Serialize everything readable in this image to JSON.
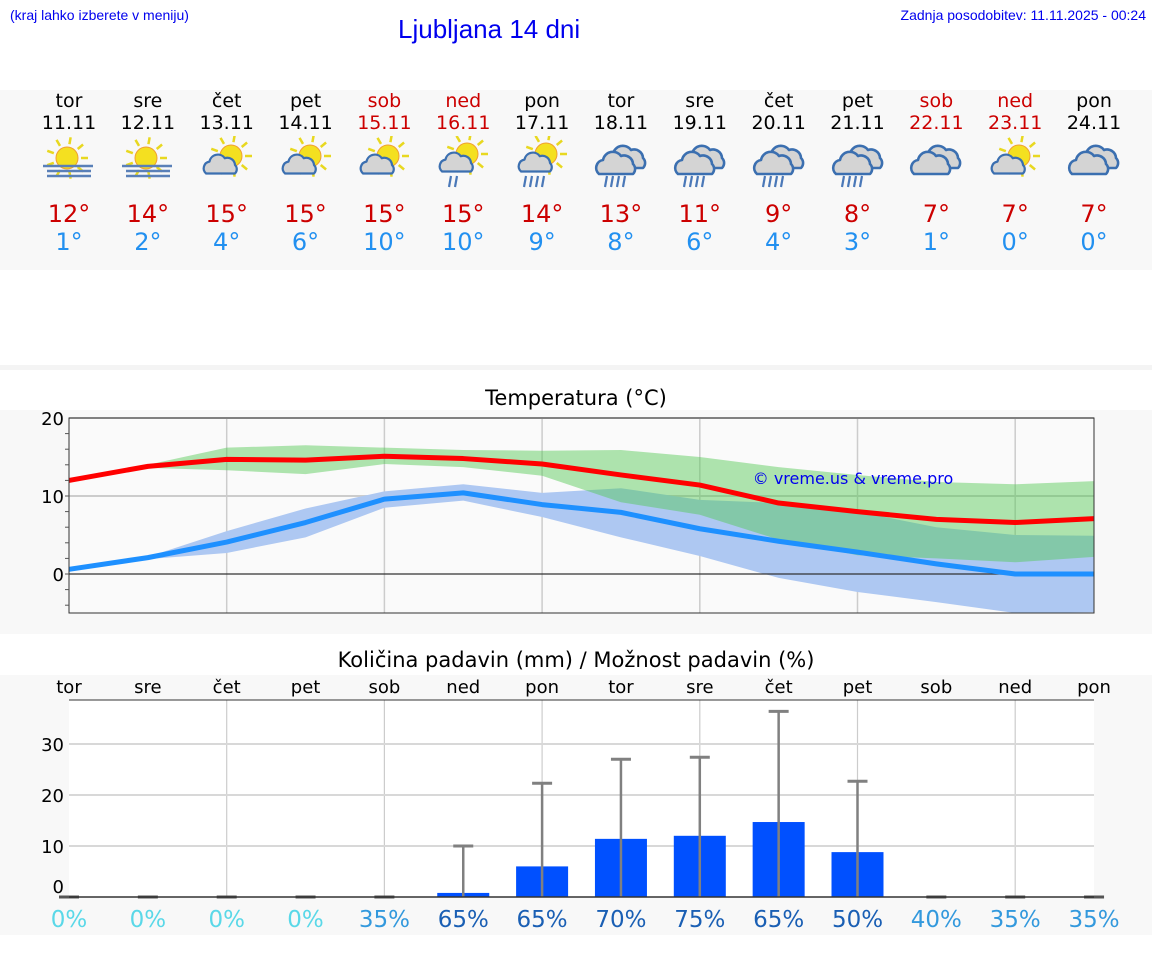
{
  "header": {
    "hint": "(kraj lahko izberete v meniju)",
    "title": "Ljubljana 14 dni",
    "updated": "Zadnja posodobitev: 11.11.2025 - 00:24"
  },
  "days": [
    {
      "name": "tor",
      "date": "11.11",
      "weekend": false,
      "icon": "fog-sun",
      "max": "12°",
      "min": "1°"
    },
    {
      "name": "sre",
      "date": "12.11",
      "weekend": false,
      "icon": "fog-sun",
      "max": "14°",
      "min": "2°"
    },
    {
      "name": "čet",
      "date": "13.11",
      "weekend": false,
      "icon": "partly-cloudy",
      "max": "15°",
      "min": "4°"
    },
    {
      "name": "pet",
      "date": "14.11",
      "weekend": false,
      "icon": "partly-cloudy",
      "max": "15°",
      "min": "6°"
    },
    {
      "name": "sob",
      "date": "15.11",
      "weekend": true,
      "icon": "partly-cloudy",
      "max": "15°",
      "min": "10°"
    },
    {
      "name": "ned",
      "date": "16.11",
      "weekend": true,
      "icon": "partly-cloudy-light-rain",
      "max": "15°",
      "min": "10°"
    },
    {
      "name": "pon",
      "date": "17.11",
      "weekend": false,
      "icon": "partly-cloudy-rain",
      "max": "14°",
      "min": "9°"
    },
    {
      "name": "tor",
      "date": "18.11",
      "weekend": false,
      "icon": "cloudy-rain",
      "max": "13°",
      "min": "8°"
    },
    {
      "name": "sre",
      "date": "19.11",
      "weekend": false,
      "icon": "cloudy-rain",
      "max": "11°",
      "min": "6°"
    },
    {
      "name": "čet",
      "date": "20.11",
      "weekend": false,
      "icon": "cloudy-rain",
      "max": "9°",
      "min": "4°"
    },
    {
      "name": "pet",
      "date": "21.11",
      "weekend": false,
      "icon": "cloudy-rain",
      "max": "8°",
      "min": "3°"
    },
    {
      "name": "sob",
      "date": "22.11",
      "weekend": true,
      "icon": "cloudy",
      "max": "7°",
      "min": "1°"
    },
    {
      "name": "ned",
      "date": "23.11",
      "weekend": true,
      "icon": "partly-cloudy",
      "max": "7°",
      "min": "0°"
    },
    {
      "name": "pon",
      "date": "24.11",
      "weekend": false,
      "icon": "cloudy",
      "max": "7°",
      "min": "0°"
    }
  ],
  "colors": {
    "max": "#ff0000",
    "min": "#1e90ff",
    "max_band": "#50c850",
    "min_band": "#aec8f2",
    "bars": "#0050ff",
    "whisker": "#808080",
    "weekend": "#cc0000",
    "pct_low": "#5ad8e8",
    "pct_mid": "#3399dd",
    "pct_high": "#1a5fb4"
  },
  "chart_data": [
    {
      "type": "line",
      "title": "Temperatura (°C)",
      "ylim": [
        -5,
        20
      ],
      "yticks": [
        "20",
        "10",
        "0"
      ],
      "watermark": "© vreme.us & vreme.pro",
      "grid": true,
      "x": [
        "11.11",
        "12.11",
        "13.11",
        "14.11",
        "15.11",
        "16.11",
        "17.11",
        "18.11",
        "19.11",
        "20.11",
        "21.11",
        "22.11",
        "23.11",
        "24.11"
      ],
      "series": [
        {
          "kind": "max",
          "values": [
            12,
            13.8,
            14.7,
            14.6,
            15.1,
            14.8,
            14.1,
            12.7,
            11.4,
            9.1,
            8.0,
            7.0,
            6.6,
            7.1
          ]
        },
        {
          "kind": "min",
          "values": [
            0.6,
            2.1,
            4.1,
            6.6,
            9.6,
            10.4,
            8.9,
            7.9,
            5.8,
            4.2,
            2.8,
            1.3,
            0,
            0
          ]
        },
        {
          "kind": "max-range",
          "upper": [
            12,
            14,
            16.2,
            16.5,
            16.2,
            15.9,
            15.8,
            15.9,
            15.0,
            13.7,
            12.7,
            11.8,
            11.5,
            11.9
          ],
          "lower": [
            12,
            13.6,
            13.3,
            12.8,
            14.1,
            13.7,
            12.6,
            9.2,
            7.6,
            4.4,
            2.4,
            2.0,
            1.5,
            2.2
          ]
        },
        {
          "kind": "min-range",
          "upper": [
            0.6,
            2.2,
            5.5,
            8.4,
            10.6,
            11.5,
            10.4,
            11.0,
            9.5,
            9.1,
            8.0,
            6.0,
            5.0,
            4.9
          ],
          "lower": [
            0.6,
            1.9,
            2.7,
            4.7,
            8.5,
            9.4,
            7.3,
            4.7,
            2.3,
            -0.5,
            -2.3,
            -3.6,
            -5,
            -4.9
          ]
        }
      ]
    },
    {
      "type": "bar",
      "title": "Količina padavin (mm) / Možnost padavin (%)",
      "ylim": [
        0,
        38.6
      ],
      "yticks": [
        "30",
        "20",
        "10",
        "0"
      ],
      "grid": true,
      "categories": [
        "tor",
        "sre",
        "čet",
        "pet",
        "sob",
        "ned",
        "pon",
        "tor",
        "sre",
        "čet",
        "pet",
        "sob",
        "ned",
        "pon"
      ],
      "values": [
        0,
        0,
        0,
        0,
        0,
        0.8,
        6,
        11.4,
        12,
        14.7,
        8.8,
        0,
        0,
        0
      ],
      "upper": [
        0,
        0,
        0,
        0,
        0,
        10,
        22.3,
        27,
        27.4,
        36.4,
        22.7,
        0,
        0,
        0
      ],
      "probability": [
        "0%",
        "0%",
        "0%",
        "0%",
        "35%",
        "65%",
        "65%",
        "70%",
        "75%",
        "65%",
        "50%",
        "40%",
        "35%",
        "35%"
      ]
    }
  ]
}
